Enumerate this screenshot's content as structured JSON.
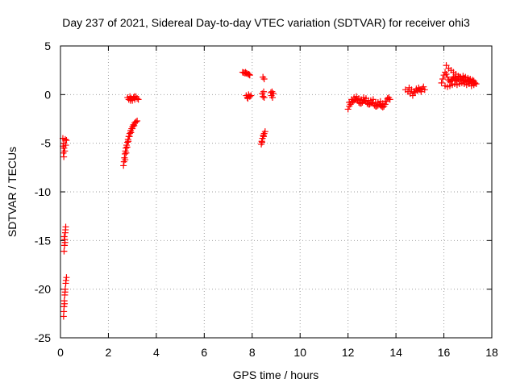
{
  "chart_data": {
    "type": "scatter",
    "title": "Day 237 of 2021, Sidereal Day-to-day VTEC variation (SDTVAR) for receiver ohi3",
    "xlabel": "GPS time / hours",
    "ylabel": "SDTVAR / TECUs",
    "xlim": [
      0,
      18
    ],
    "ylim": [
      -25,
      5
    ],
    "xticks": [
      0,
      2,
      4,
      6,
      8,
      10,
      12,
      14,
      16,
      18
    ],
    "yticks": [
      5,
      0,
      -5,
      -10,
      -15,
      -20,
      -25
    ],
    "grid": true,
    "marker": "+",
    "color": "#ff0000",
    "series": [
      {
        "name": "SDTVAR",
        "points": [
          [
            0.1,
            -4.5
          ],
          [
            0.13,
            -5.0
          ],
          [
            0.15,
            -5.5
          ],
          [
            0.12,
            -6.0
          ],
          [
            0.14,
            -6.4
          ],
          [
            0.2,
            -4.6
          ],
          [
            0.22,
            -5.2
          ],
          [
            0.18,
            -5.8
          ],
          [
            0.25,
            -4.7
          ],
          [
            0.11,
            -5.3
          ],
          [
            0.22,
            -13.6
          ],
          [
            0.2,
            -14.2
          ],
          [
            0.18,
            -14.9
          ],
          [
            0.17,
            -15.5
          ],
          [
            0.15,
            -16.1
          ],
          [
            0.16,
            -14.6
          ],
          [
            0.21,
            -13.9
          ],
          [
            0.19,
            -15.2
          ],
          [
            0.25,
            -18.8
          ],
          [
            0.22,
            -19.4
          ],
          [
            0.2,
            -20.0
          ],
          [
            0.18,
            -20.6
          ],
          [
            0.16,
            -21.2
          ],
          [
            0.15,
            -21.8
          ],
          [
            0.14,
            -22.3
          ],
          [
            0.13,
            -22.8
          ],
          [
            0.23,
            -19.1
          ],
          [
            0.19,
            -20.3
          ],
          [
            0.17,
            -21.5
          ],
          [
            2.63,
            -7.3
          ],
          [
            2.65,
            -6.9
          ],
          [
            2.67,
            -6.5
          ],
          [
            2.69,
            -6.1
          ],
          [
            2.71,
            -5.8
          ],
          [
            2.73,
            -5.5
          ],
          [
            2.76,
            -5.2
          ],
          [
            2.79,
            -4.9
          ],
          [
            2.82,
            -4.6
          ],
          [
            2.85,
            -4.3
          ],
          [
            2.89,
            -4.0
          ],
          [
            2.93,
            -3.7
          ],
          [
            2.97,
            -3.5
          ],
          [
            3.01,
            -3.3
          ],
          [
            3.05,
            -3.1
          ],
          [
            3.1,
            -2.9
          ],
          [
            3.15,
            -2.8
          ],
          [
            3.2,
            -2.7
          ],
          [
            2.7,
            -6.7
          ],
          [
            2.74,
            -6.0
          ],
          [
            2.78,
            -5.4
          ],
          [
            2.83,
            -4.8
          ],
          [
            2.88,
            -4.3
          ],
          [
            2.94,
            -3.9
          ],
          [
            3.0,
            -3.5
          ],
          [
            3.07,
            -3.2
          ],
          [
            2.8,
            -0.3
          ],
          [
            2.85,
            -0.5
          ],
          [
            2.9,
            -0.2
          ],
          [
            2.95,
            -0.4
          ],
          [
            3.0,
            -0.6
          ],
          [
            3.05,
            -0.3
          ],
          [
            3.1,
            -0.5
          ],
          [
            3.15,
            -0.2
          ],
          [
            3.2,
            -0.4
          ],
          [
            3.25,
            -0.5
          ],
          [
            2.92,
            -0.6
          ],
          [
            3.08,
            -0.2
          ],
          [
            7.6,
            2.3
          ],
          [
            7.65,
            2.25
          ],
          [
            7.7,
            2.2
          ],
          [
            7.75,
            2.2
          ],
          [
            7.8,
            2.15
          ],
          [
            7.85,
            2.1
          ],
          [
            7.9,
            2.0
          ],
          [
            7.72,
            2.3
          ],
          [
            7.88,
            2.05
          ],
          [
            7.75,
            -0.1
          ],
          [
            7.8,
            -0.3
          ],
          [
            7.85,
            0.0
          ],
          [
            7.9,
            -0.2
          ],
          [
            7.95,
            -0.1
          ],
          [
            7.82,
            -0.4
          ],
          [
            8.45,
            1.8
          ],
          [
            8.5,
            1.6
          ],
          [
            8.42,
            0.1
          ],
          [
            8.45,
            -0.2
          ],
          [
            8.48,
            0.3
          ],
          [
            8.5,
            -0.3
          ],
          [
            8.38,
            -5.1
          ],
          [
            8.4,
            -4.8
          ],
          [
            8.43,
            -4.5
          ],
          [
            8.46,
            -4.2
          ],
          [
            8.5,
            -4.0
          ],
          [
            8.54,
            -3.8
          ],
          [
            8.41,
            -4.9
          ],
          [
            8.48,
            -4.3
          ],
          [
            8.78,
            0.2
          ],
          [
            8.8,
            -0.1
          ],
          [
            8.83,
            0.3
          ],
          [
            8.85,
            -0.3
          ],
          [
            8.88,
            0.1
          ],
          [
            12.0,
            -1.5
          ],
          [
            12.05,
            -1.2
          ],
          [
            12.1,
            -1.0
          ],
          [
            12.15,
            -0.8
          ],
          [
            12.2,
            -0.7
          ],
          [
            12.25,
            -0.6
          ],
          [
            12.3,
            -0.5
          ],
          [
            12.35,
            -0.5
          ],
          [
            12.4,
            -0.6
          ],
          [
            12.45,
            -0.8
          ],
          [
            12.5,
            -0.9
          ],
          [
            12.55,
            -0.9
          ],
          [
            12.6,
            -0.8
          ],
          [
            12.65,
            -0.6
          ],
          [
            12.7,
            -0.6
          ],
          [
            12.75,
            -0.7
          ],
          [
            12.8,
            -0.9
          ],
          [
            12.85,
            -1.0
          ],
          [
            12.9,
            -1.0
          ],
          [
            12.95,
            -0.9
          ],
          [
            13.0,
            -0.8
          ],
          [
            13.05,
            -0.9
          ],
          [
            13.1,
            -1.1
          ],
          [
            13.15,
            -1.2
          ],
          [
            13.2,
            -1.2
          ],
          [
            13.25,
            -1.1
          ],
          [
            13.3,
            -1.0
          ],
          [
            13.35,
            -1.1
          ],
          [
            13.4,
            -1.2
          ],
          [
            13.45,
            -1.3
          ],
          [
            13.5,
            -1.2
          ],
          [
            13.55,
            -1.0
          ],
          [
            13.6,
            -0.7
          ],
          [
            13.65,
            -0.4
          ],
          [
            13.7,
            -0.3
          ],
          [
            13.75,
            -0.5
          ],
          [
            12.05,
            -0.8
          ],
          [
            12.15,
            -0.5
          ],
          [
            12.25,
            -0.3
          ],
          [
            12.35,
            -0.2
          ],
          [
            12.45,
            -0.4
          ],
          [
            12.55,
            -0.5
          ],
          [
            12.65,
            -0.3
          ],
          [
            12.75,
            -0.4
          ],
          [
            12.85,
            -0.6
          ],
          [
            12.95,
            -0.6
          ],
          [
            13.05,
            -0.5
          ],
          [
            13.15,
            -0.8
          ],
          [
            13.25,
            -0.8
          ],
          [
            13.35,
            -0.7
          ],
          [
            13.45,
            -0.9
          ],
          [
            13.55,
            -0.7
          ],
          [
            14.4,
            0.5
          ],
          [
            14.5,
            0.3
          ],
          [
            14.6,
            0.1
          ],
          [
            14.7,
            -0.1
          ],
          [
            14.8,
            0.2
          ],
          [
            14.9,
            0.4
          ],
          [
            15.0,
            0.5
          ],
          [
            15.1,
            0.6
          ],
          [
            15.2,
            0.5
          ],
          [
            14.55,
            0.7
          ],
          [
            14.65,
            0.5
          ],
          [
            14.75,
            0.3
          ],
          [
            14.85,
            0.6
          ],
          [
            14.95,
            0.7
          ],
          [
            15.05,
            0.3
          ],
          [
            15.15,
            0.8
          ],
          [
            15.9,
            1.2
          ],
          [
            15.95,
            1.6
          ],
          [
            16.0,
            2.0
          ],
          [
            16.05,
            2.3
          ],
          [
            16.1,
            2.1
          ],
          [
            16.15,
            1.8
          ],
          [
            16.2,
            1.5
          ],
          [
            16.25,
            1.3
          ],
          [
            16.3,
            1.4
          ],
          [
            16.35,
            1.6
          ],
          [
            16.4,
            1.8
          ],
          [
            16.45,
            1.7
          ],
          [
            16.5,
            1.5
          ],
          [
            16.55,
            1.4
          ],
          [
            16.6,
            1.6
          ],
          [
            16.65,
            1.8
          ],
          [
            16.7,
            1.6
          ],
          [
            16.75,
            1.4
          ],
          [
            16.8,
            1.5
          ],
          [
            16.85,
            1.7
          ],
          [
            16.9,
            1.5
          ],
          [
            16.95,
            1.3
          ],
          [
            17.0,
            1.4
          ],
          [
            17.05,
            1.5
          ],
          [
            17.1,
            1.4
          ],
          [
            17.15,
            1.2
          ],
          [
            17.2,
            1.3
          ],
          [
            17.25,
            1.4
          ],
          [
            17.3,
            1.2
          ],
          [
            17.35,
            1.1
          ],
          [
            16.1,
            3.0
          ],
          [
            16.2,
            2.7
          ],
          [
            16.3,
            2.5
          ],
          [
            16.4,
            2.3
          ],
          [
            16.5,
            2.1
          ],
          [
            16.6,
            1.9
          ],
          [
            16.7,
            1.8
          ],
          [
            16.8,
            1.9
          ],
          [
            16.9,
            1.8
          ],
          [
            17.0,
            1.7
          ],
          [
            17.1,
            1.6
          ],
          [
            17.2,
            1.5
          ],
          [
            16.05,
            0.9
          ],
          [
            16.15,
            0.8
          ],
          [
            16.25,
            0.9
          ],
          [
            16.35,
            1.0
          ],
          [
            16.45,
            1.1
          ],
          [
            16.55,
            1.0
          ],
          [
            16.65,
            1.1
          ],
          [
            16.75,
            1.2
          ],
          [
            16.85,
            1.1
          ],
          [
            16.95,
            1.0
          ],
          [
            17.05,
            1.1
          ],
          [
            17.15,
            0.9
          ],
          [
            17.25,
            1.0
          ]
        ]
      }
    ]
  }
}
